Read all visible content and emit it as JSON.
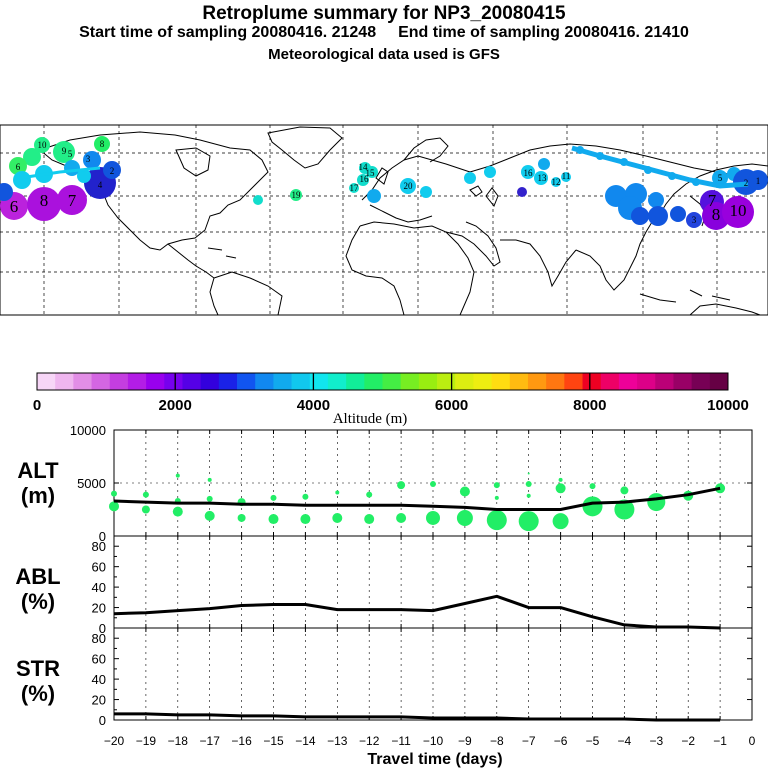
{
  "header": {
    "title": "Retroplume summary for NP3_20080415",
    "start_label": "Start time of sampling 20080416. 21248",
    "end_label": "End time of sampling 20080416. 21410",
    "met_label": "Meteorological data used is GFS"
  },
  "colorbar": {
    "label": "Altitude (m)",
    "ticks": [
      "0",
      "2000",
      "4000",
      "6000",
      "8000",
      "10000"
    ],
    "colors": [
      "#f7d6f7",
      "#efb6ef",
      "#e28ee6",
      "#d466e2",
      "#c43ee0",
      "#b31de6",
      "#9900ee",
      "#7700ee",
      "#5500e6",
      "#3300dd",
      "#1a22e8",
      "#1155f0",
      "#1188f0",
      "#11aaee",
      "#11c8ee",
      "#11e6ee",
      "#11eecc",
      "#11ee99",
      "#22ee66",
      "#44ee44",
      "#77ee22",
      "#99ee11",
      "#bbee11",
      "#ddee11",
      "#eeee11",
      "#ffdd11",
      "#ffbb11",
      "#ff9911",
      "#ff7711",
      "#ff4411",
      "#ee0022",
      "#ee0066",
      "#ee0099",
      "#dd0088",
      "#bb0077",
      "#990066",
      "#770055",
      "#660044"
    ]
  },
  "map": {
    "plume_labels": [
      "10",
      "8",
      "6",
      "5",
      "9",
      "8",
      "7",
      "6",
      "3",
      "2",
      "4",
      "14",
      "15",
      "16",
      "17",
      "20",
      "16",
      "19",
      "13",
      "12",
      "11",
      "10",
      "8",
      "7",
      "5",
      "3",
      "2",
      "1"
    ]
  },
  "chart_data": [
    {
      "type": "line",
      "panel": "ALT",
      "ylabel": "ALT (m)",
      "ylabel_lines": [
        "ALT",
        "(m)"
      ],
      "xlim": [
        -20,
        0
      ],
      "ylim": [
        0,
        10000
      ],
      "ytick_labels": [
        "10000",
        "5000",
        "0"
      ],
      "x": [
        -20,
        -19,
        -18,
        -17,
        -16,
        -15,
        -14,
        -13,
        -12,
        -11,
        -10,
        -9,
        -8,
        -7,
        -6,
        -5,
        -4,
        -3,
        -2,
        -1
      ],
      "values": [
        3300,
        3200,
        3100,
        3100,
        3000,
        3000,
        2900,
        2900,
        2900,
        2900,
        2800,
        2700,
        2500,
        2500,
        2500,
        3100,
        3200,
        3500,
        3900,
        4500
      ],
      "points": [
        {
          "x": -20,
          "y": 4000,
          "r": 3
        },
        {
          "x": -20,
          "y": 2800,
          "r": 5
        },
        {
          "x": -19,
          "y": 3900,
          "r": 3
        },
        {
          "x": -19,
          "y": 2500,
          "r": 4
        },
        {
          "x": -18,
          "y": 5700,
          "r": 2
        },
        {
          "x": -18,
          "y": 3300,
          "r": 3
        },
        {
          "x": -18,
          "y": 2300,
          "r": 5
        },
        {
          "x": -17,
          "y": 5300,
          "r": 2
        },
        {
          "x": -17,
          "y": 3500,
          "r": 3
        },
        {
          "x": -17,
          "y": 1900,
          "r": 5
        },
        {
          "x": -16,
          "y": 3200,
          "r": 4
        },
        {
          "x": -16,
          "y": 1700,
          "r": 4
        },
        {
          "x": -15,
          "y": 3600,
          "r": 3
        },
        {
          "x": -15,
          "y": 1600,
          "r": 5
        },
        {
          "x": -14,
          "y": 3700,
          "r": 3
        },
        {
          "x": -14,
          "y": 1600,
          "r": 5
        },
        {
          "x": -13,
          "y": 4100,
          "r": 2
        },
        {
          "x": -13,
          "y": 1700,
          "r": 5
        },
        {
          "x": -12,
          "y": 3900,
          "r": 3
        },
        {
          "x": -12,
          "y": 1600,
          "r": 5
        },
        {
          "x": -11,
          "y": 4800,
          "r": 4
        },
        {
          "x": -11,
          "y": 1700,
          "r": 5
        },
        {
          "x": -10,
          "y": 4900,
          "r": 3
        },
        {
          "x": -10,
          "y": 1700,
          "r": 7
        },
        {
          "x": -9,
          "y": 4200,
          "r": 5
        },
        {
          "x": -9,
          "y": 1700,
          "r": 8
        },
        {
          "x": -8,
          "y": 4800,
          "r": 3
        },
        {
          "x": -8,
          "y": 3600,
          "r": 2
        },
        {
          "x": -8,
          "y": 1500,
          "r": 10
        },
        {
          "x": -7,
          "y": 5900,
          "r": 1
        },
        {
          "x": -7,
          "y": 4900,
          "r": 3
        },
        {
          "x": -7,
          "y": 3800,
          "r": 2
        },
        {
          "x": -7,
          "y": 1400,
          "r": 10
        },
        {
          "x": -6,
          "y": 5300,
          "r": 2
        },
        {
          "x": -6,
          "y": 4500,
          "r": 5
        },
        {
          "x": -6,
          "y": 1400,
          "r": 8
        },
        {
          "x": -5,
          "y": 4700,
          "r": 3
        },
        {
          "x": -5,
          "y": 2800,
          "r": 10
        },
        {
          "x": -4,
          "y": 4300,
          "r": 4
        },
        {
          "x": -4,
          "y": 2500,
          "r": 10
        },
        {
          "x": -3,
          "y": 3200,
          "r": 9
        },
        {
          "x": -2,
          "y": 3800,
          "r": 5
        },
        {
          "x": -1,
          "y": 4500,
          "r": 5
        }
      ]
    },
    {
      "type": "line",
      "panel": "ABL",
      "ylabel": "ABL (%)",
      "ylabel_lines": [
        "ABL",
        "(%)"
      ],
      "xlim": [
        -20,
        0
      ],
      "ylim": [
        0,
        90
      ],
      "ytick_labels": [
        "80",
        "60",
        "40",
        "20",
        "0"
      ],
      "x": [
        -20,
        -19,
        -18,
        -17,
        -16,
        -15,
        -14,
        -13,
        -12,
        -11,
        -10,
        -9,
        -8,
        -7,
        -6,
        -5,
        -4,
        -3,
        -2,
        -1
      ],
      "values": [
        14,
        15,
        17,
        19,
        22,
        23,
        23,
        18,
        18,
        18,
        17,
        24,
        31,
        20,
        20,
        11,
        3,
        1,
        1,
        0
      ]
    },
    {
      "type": "line",
      "panel": "STR",
      "ylabel": "STR (%)",
      "ylabel_lines": [
        "STR",
        "(%)"
      ],
      "xlim": [
        -20,
        0
      ],
      "ylim": [
        0,
        90
      ],
      "ytick_labels": [
        "80",
        "60",
        "40",
        "20",
        "0"
      ],
      "x": [
        -20,
        -19,
        -18,
        -17,
        -16,
        -15,
        -14,
        -13,
        -12,
        -11,
        -10,
        -9,
        -8,
        -7,
        -6,
        -5,
        -4,
        -3,
        -2,
        -1
      ],
      "values": [
        6,
        6,
        5,
        5,
        4,
        4,
        3,
        3,
        3,
        3,
        2,
        2,
        2,
        1,
        1,
        1,
        1,
        0,
        0,
        0
      ],
      "xlabel": "Travel time (days)",
      "xtick_labels": [
        "−20",
        "−19",
        "−18",
        "−17",
        "−16",
        "−15",
        "−14",
        "−13",
        "−12",
        "−11",
        "−10",
        "−9",
        "−8",
        "−7",
        "−6",
        "−5",
        "−4",
        "−3",
        "−2",
        "−1",
        "0"
      ]
    }
  ]
}
